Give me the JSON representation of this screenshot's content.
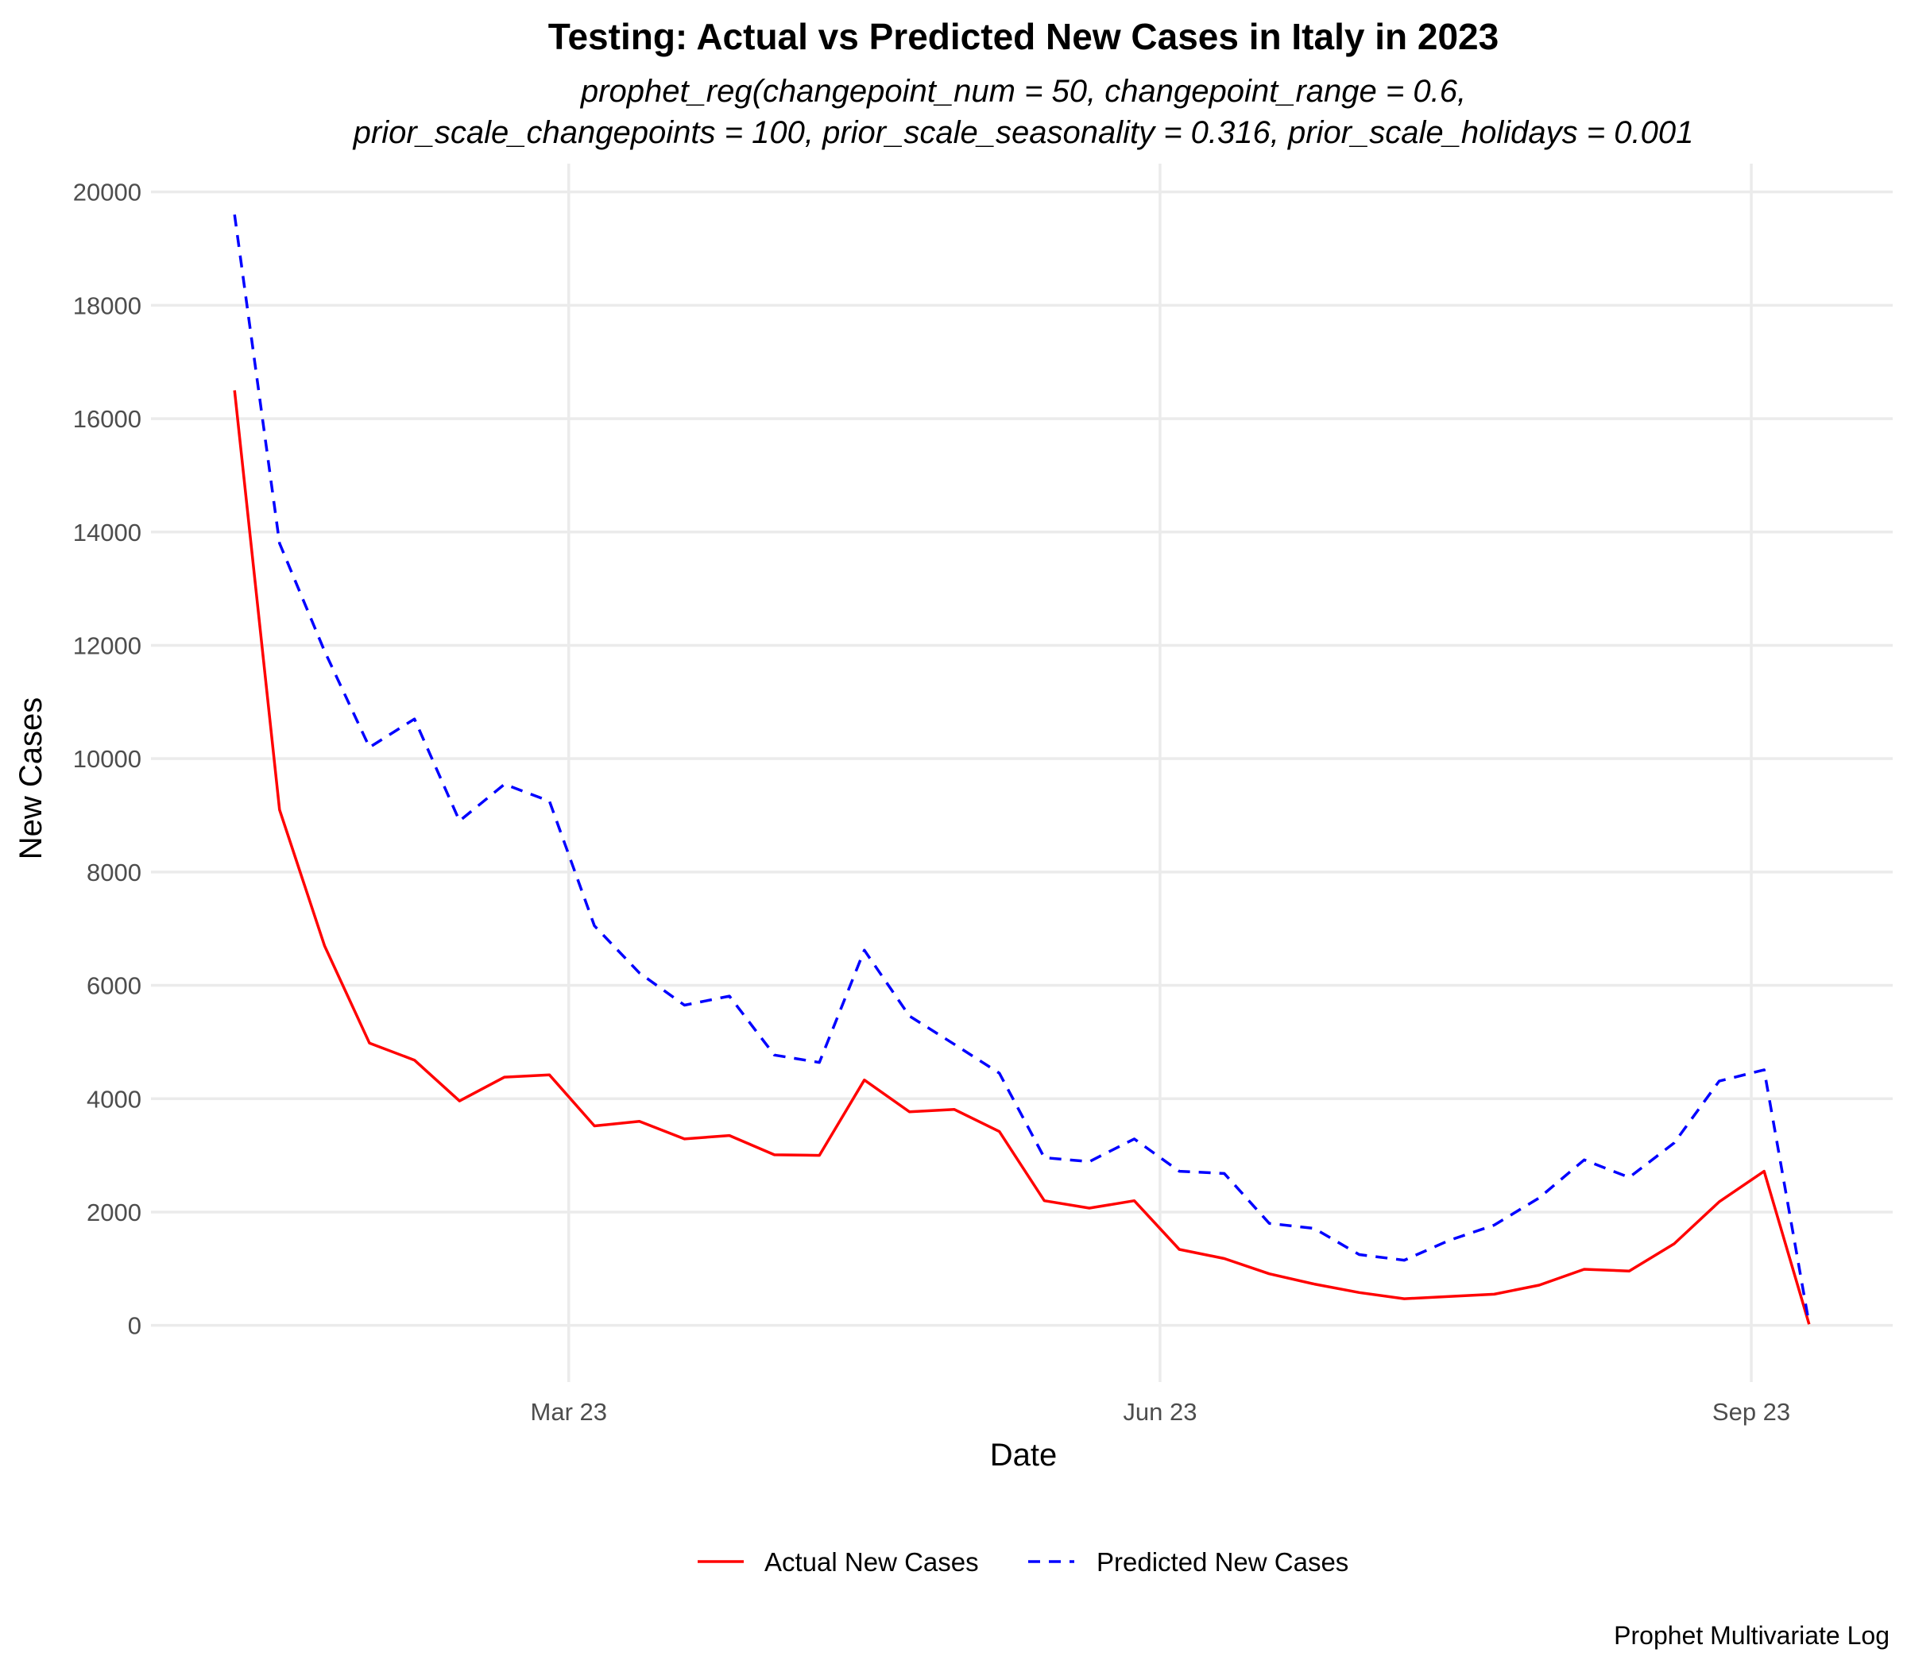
{
  "chart_data": {
    "type": "line",
    "title": "Testing: Actual vs Predicted New Cases in Italy in 2023",
    "subtitle": [
      "prophet_reg(changepoint_num = 50, changepoint_range = 0.6,",
      "prior_scale_changepoints = 100, prior_scale_seasonality = 0.316, prior_scale_holidays = 0.001"
    ],
    "xlabel": "Date",
    "ylabel": "New Cases",
    "caption": "Prophet Multivariate Log",
    "x_ticks": [
      {
        "date": "2023-03-01",
        "label": "Mar 23"
      },
      {
        "date": "2023-06-01",
        "label": "Jun 23"
      },
      {
        "date": "2023-09-01",
        "label": "Sep 23"
      }
    ],
    "xlim": [
      "2022-12-26",
      "2023-09-23"
    ],
    "ylim": [
      -1000,
      20500
    ],
    "y_ticks": [
      0,
      2000,
      4000,
      6000,
      8000,
      10000,
      12000,
      14000,
      16000,
      18000,
      20000
    ],
    "grid": true,
    "legend_position": "bottom",
    "x": [
      "2023-01-08",
      "2023-01-15",
      "2023-01-22",
      "2023-01-29",
      "2023-02-05",
      "2023-02-12",
      "2023-02-19",
      "2023-02-26",
      "2023-03-05",
      "2023-03-12",
      "2023-03-19",
      "2023-03-26",
      "2023-04-02",
      "2023-04-09",
      "2023-04-16",
      "2023-04-23",
      "2023-04-30",
      "2023-05-07",
      "2023-05-14",
      "2023-05-21",
      "2023-05-28",
      "2023-06-04",
      "2023-06-11",
      "2023-06-18",
      "2023-06-25",
      "2023-07-02",
      "2023-07-09",
      "2023-07-16",
      "2023-07-23",
      "2023-07-30",
      "2023-08-06",
      "2023-08-13",
      "2023-08-20",
      "2023-08-27",
      "2023-09-03",
      "2023-09-10"
    ],
    "series": [
      {
        "name": "Actual New Cases",
        "color": "#ff0000",
        "dash": "solid",
        "values": [
          16500,
          9100,
          6700,
          4980,
          4680,
          3960,
          4380,
          4420,
          3520,
          3600,
          3290,
          3350,
          3010,
          3000,
          4330,
          3770,
          3810,
          3420,
          2200,
          2070,
          2200,
          1340,
          1180,
          910,
          730,
          580,
          470,
          510,
          550,
          710,
          990,
          960,
          1440,
          2180,
          2720,
          20
        ]
      },
      {
        "name": "Predicted New Cases",
        "color": "#0000ff",
        "dash": "dashed",
        "values": [
          19600,
          13800,
          11900,
          10200,
          10700,
          8900,
          9550,
          9250,
          7050,
          6220,
          5650,
          5810,
          4770,
          4640,
          6620,
          5460,
          4960,
          4450,
          2960,
          2890,
          3290,
          2720,
          2680,
          1800,
          1710,
          1250,
          1150,
          1500,
          1770,
          2250,
          2920,
          2610,
          3220,
          4310,
          4510,
          30
        ]
      }
    ]
  }
}
